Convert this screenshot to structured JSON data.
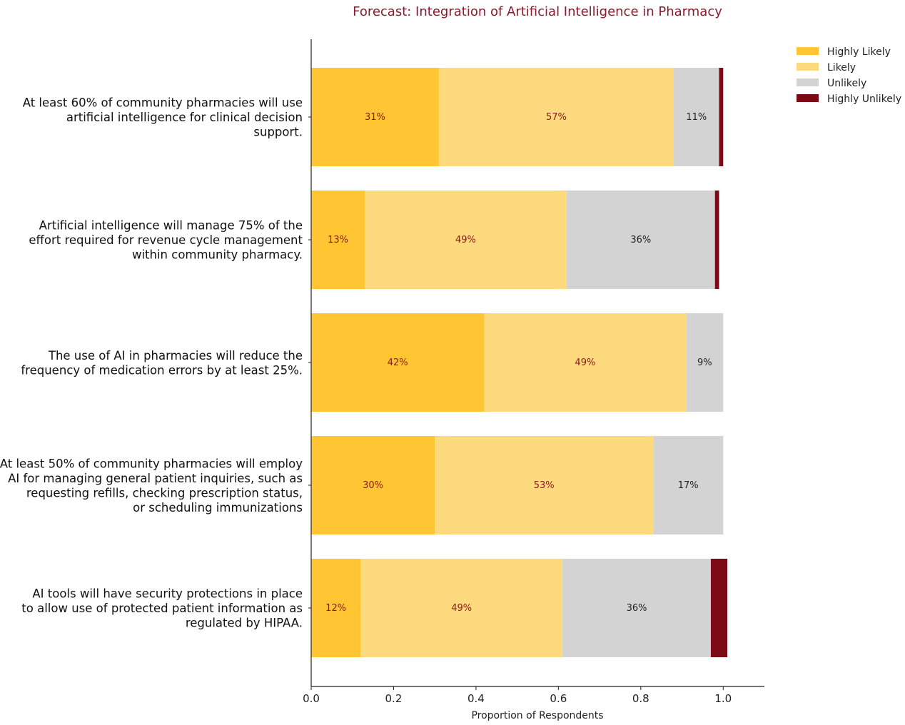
{
  "chart_data": {
    "type": "bar",
    "orientation": "horizontal",
    "stacked": true,
    "title": "Forecast: Integration of Artificial Intelligence in Pharmacy",
    "xlabel": "Proportion of Respondents",
    "ylabel": "",
    "xlim": [
      0,
      1.1
    ],
    "xticks": [
      "0.0",
      "0.2",
      "0.4",
      "0.6",
      "0.8",
      "1.0"
    ],
    "grid": false,
    "legend_position": "top-right",
    "categories": [
      [
        "At least 60% of community pharmacies will use",
        "artificial intelligence for clinical decision",
        "support."
      ],
      [
        "Artificial intelligence will manage 75% of the",
        "effort required for revenue cycle management",
        "within community pharmacy."
      ],
      [
        "The use of AI in pharmacies will reduce the",
        "frequency of medication errors by at least 25%."
      ],
      [
        "At least 50% of community pharmacies will employ",
        "AI for managing general patient inquiries, such as",
        "requesting refills, checking prescription status,",
        "or scheduling immunizations"
      ],
      [
        "AI tools will have security protections in place",
        "to allow use of protected patient information as",
        "regulated by HIPAA."
      ]
    ],
    "series": [
      {
        "name": "Highly Likely",
        "color": "#FFC533",
        "label_color": "#8B1A1A",
        "values": [
          0.31,
          0.13,
          0.42,
          0.3,
          0.12
        ],
        "labels": [
          "31%",
          "13%",
          "42%",
          "30%",
          "12%"
        ]
      },
      {
        "name": "Likely",
        "color": "#FDDA7D",
        "label_color": "#8B1A1A",
        "values": [
          0.57,
          0.49,
          0.49,
          0.53,
          0.49
        ],
        "labels": [
          "57%",
          "49%",
          "49%",
          "53%",
          "49%"
        ]
      },
      {
        "name": "Unlikely",
        "color": "#D3D3D3",
        "label_color": "#222222",
        "values": [
          0.11,
          0.36,
          0.09,
          0.17,
          0.36
        ],
        "labels": [
          "11%",
          "36%",
          "9%",
          "17%",
          "36%"
        ]
      },
      {
        "name": "Highly Unlikely",
        "color": "#7B0A16",
        "label_color": "#ffffff",
        "values": [
          0.01,
          0.01,
          0.0,
          0.0,
          0.04
        ],
        "labels": [
          "",
          "",
          "",
          "",
          ""
        ]
      }
    ],
    "title_color": "#8B1A2B"
  }
}
